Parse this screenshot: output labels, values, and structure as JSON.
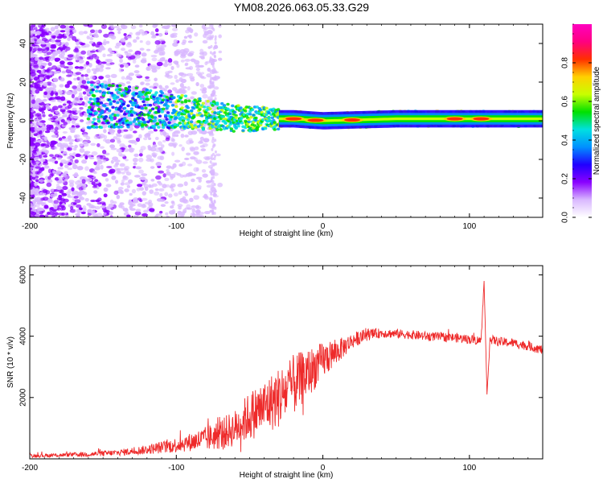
{
  "title": "YM08.2026.063.05.33.G29",
  "chart_data": [
    {
      "type": "heatmap",
      "name": "spectrogram",
      "xlabel": "Height of straight line (km)",
      "ylabel": "Frequency (Hz)",
      "xlim": [
        -200,
        150
      ],
      "ylim": [
        -50,
        50
      ],
      "xticks": [
        -200,
        -100,
        0,
        100
      ],
      "yticks": [
        -40,
        -20,
        0,
        20,
        40
      ],
      "colorbar": {
        "label": "Normalized spectral amplitude",
        "range": [
          0.0,
          1.0
        ],
        "ticks": [
          "0.0",
          "0.2",
          "0.4",
          "0.6",
          "0.8"
        ],
        "colors": [
          "#ffffff",
          "#d9b8ff",
          "#8a00ff",
          "#2000ff",
          "#0090ff",
          "#00e0e0",
          "#00e000",
          "#c8ff00",
          "#ffd000",
          "#ff3000",
          "#ff0080",
          "#ff00c0"
        ]
      },
      "band_center_hz": [
        {
          "x": -150,
          "f": 8
        },
        {
          "x": -100,
          "f": 5
        },
        {
          "x": -60,
          "f": 1
        },
        {
          "x": -20,
          "f": 1
        },
        {
          "x": 0,
          "f": 0
        },
        {
          "x": 50,
          "f": 1
        },
        {
          "x": 90,
          "f": 1
        },
        {
          "x": 150,
          "f": 1
        }
      ],
      "hotspots_km": [
        -20,
        -5,
        20,
        90,
        108
      ]
    },
    {
      "type": "line",
      "name": "snr",
      "xlabel": "Height of straight line (km)",
      "ylabel": "SNR (10 * v/v)",
      "xlim": [
        -200,
        150
      ],
      "ylim": [
        0,
        6300
      ],
      "xticks": [
        -200,
        -100,
        0,
        100
      ],
      "yticks": [
        2000,
        4000,
        6000
      ],
      "color": "#ee2a2a",
      "series": [
        {
          "name": "SNR",
          "x": [
            -200,
            -180,
            -160,
            -140,
            -120,
            -100,
            -90,
            -80,
            -70,
            -60,
            -50,
            -40,
            -30,
            -20,
            -10,
            0,
            10,
            20,
            30,
            40,
            50,
            60,
            70,
            80,
            90,
            100,
            108,
            110,
            112,
            114,
            120,
            130,
            140,
            150
          ],
          "values": [
            100,
            120,
            150,
            200,
            300,
            450,
            550,
            650,
            800,
            1000,
            1400,
            1700,
            2000,
            2400,
            2800,
            3200,
            3500,
            3850,
            4050,
            4100,
            4080,
            4050,
            4000,
            3980,
            3950,
            3900,
            3850,
            5800,
            2100,
            3900,
            3820,
            3780,
            3680,
            3550
          ],
          "spread": [
            60,
            60,
            80,
            100,
            150,
            250,
            300,
            400,
            500,
            600,
            800,
            900,
            1000,
            1000,
            800,
            600,
            400,
            250,
            200,
            150,
            150,
            150,
            150,
            150,
            150,
            150,
            150,
            0,
            0,
            150,
            150,
            150,
            150,
            150
          ]
        }
      ]
    }
  ]
}
